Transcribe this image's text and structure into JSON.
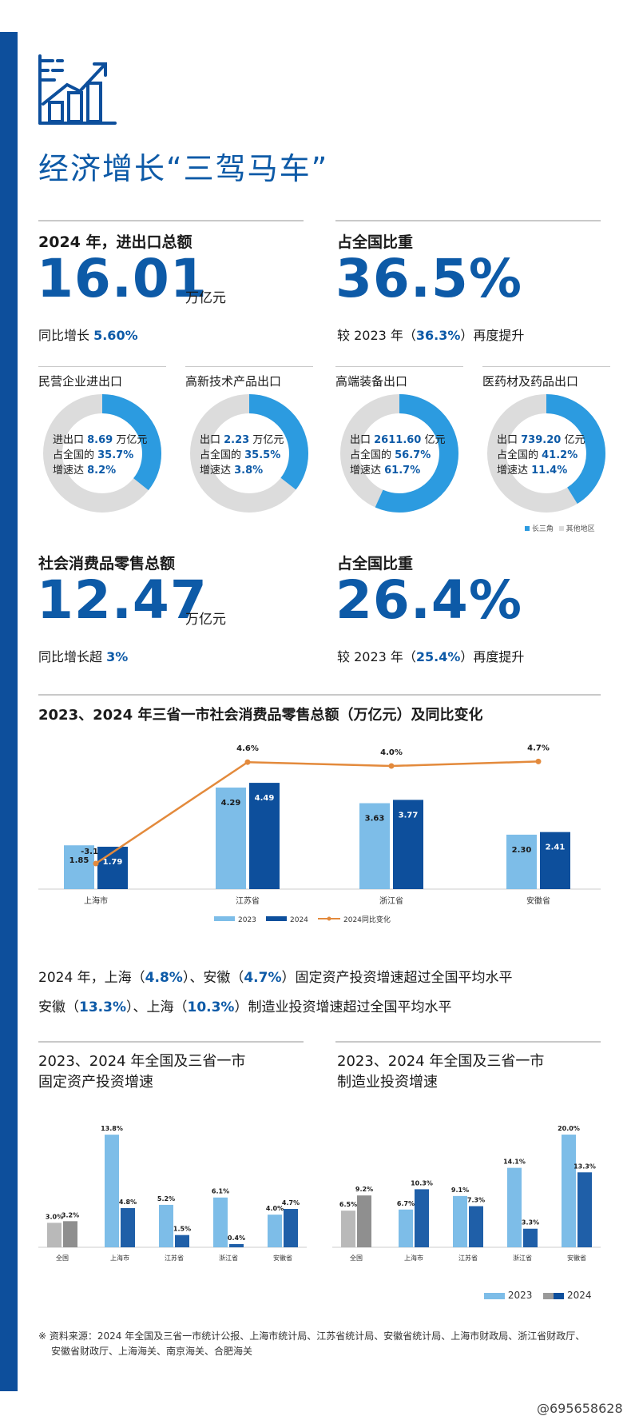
{
  "title": "经济增长“三驾马车”",
  "trade": {
    "label": "2024 年，进出口总额",
    "value": "16.01",
    "unit": "万亿元",
    "growth_prefix": "同比增长 ",
    "growth": "5.60%"
  },
  "trade_share": {
    "label": "占全国比重",
    "value": "36.5%",
    "note_prefix": "较 2023 年（",
    "note_value": "36.3%",
    "note_suffix": "）再度提升"
  },
  "donuts": [
    {
      "title": "民营企业进出口",
      "l1_pre": "进出口 ",
      "l1_val": "8.69",
      "l1_suf": " 万亿元",
      "l2_pre": "占全国的 ",
      "l2_val": "35.7%",
      "l3_pre": "增速达 ",
      "l3_val": "8.2%",
      "share": 0.357
    },
    {
      "title": "高新技术产品出口",
      "l1_pre": "出口 ",
      "l1_val": "2.23",
      "l1_suf": " 万亿元",
      "l2_pre": "占全国的 ",
      "l2_val": "35.5%",
      "l3_pre": "增速达 ",
      "l3_val": "3.8%",
      "share": 0.355
    },
    {
      "title": "高端装备出口",
      "l1_pre": "出口 ",
      "l1_val": "2611.60",
      "l1_suf": " 亿元",
      "l2_pre": "占全国的 ",
      "l2_val": "56.7%",
      "l3_pre": "增速达 ",
      "l3_val": "61.7%",
      "share": 0.567
    },
    {
      "title": "医药材及药品出口",
      "l1_pre": "出口 ",
      "l1_val": "739.20",
      "l1_suf": " 亿元",
      "l2_pre": "占全国的 ",
      "l2_val": "41.2%",
      "l3_pre": "增速达 ",
      "l3_val": "11.4%",
      "share": 0.412
    }
  ],
  "donut_legend": {
    "a": "长三角",
    "b": "其他地区"
  },
  "retail": {
    "label": "社会消费品零售总额",
    "value": "12.47",
    "unit": "万亿元",
    "growth_prefix": "同比增长超 ",
    "growth": "3%"
  },
  "retail_share": {
    "label": "占全国比重",
    "value": "26.4%",
    "note_prefix": "较 2023 年（",
    "note_value": "25.4%",
    "note_suffix": "）再度提升"
  },
  "chart1_title": "2023、2024 年三省一市社会消费品零售总额（万亿元）及同比变化",
  "para1": {
    "p1": "2024 年，上海（",
    "v1": "4.8%",
    "p2": "）、安徽（",
    "v2": "4.7%",
    "p3": "）固定资产投资增速超过全国平均水平"
  },
  "para2": {
    "p1": "安徽（",
    "v1": "13.3%",
    "p2": "）、上海（",
    "v2": "10.3%",
    "p3": "）制造业投资增速超过全国平均水平"
  },
  "chart2_title": [
    "2023、2024 年全国及三省一市",
    "固定资产投资增速"
  ],
  "chart3_title": [
    "2023、2024 年全国及三省一市",
    "制造业投资增速"
  ],
  "legend_bottom": {
    "a": "2023",
    "b": "2024"
  },
  "source": [
    "※ 资料来源：2024 年全国及三省一市统计公报、上海市统计局、江苏省统计局、安徽省统计局、上海市财政局、浙江省财政厅、",
    "安徽省财政厅、上海海关、南京海关、合肥海关"
  ],
  "watermark": "@695658628",
  "colors": {
    "blue_dark": "#0d4f9c",
    "blue_mid": "#1f5fa8",
    "blue_light": "#7dbde8",
    "donut_blue": "#2c9be0",
    "gray": "#dcdcdc",
    "orange": "#e38a3c"
  },
  "chart_data": [
    {
      "type": "bar",
      "categories": [
        "上海市",
        "江苏省",
        "浙江省",
        "安徽省"
      ],
      "series": [
        {
          "name": "2023",
          "values": [
            1.85,
            4.29,
            3.63,
            2.3
          ]
        },
        {
          "name": "2024",
          "values": [
            1.79,
            4.49,
            3.77,
            2.41
          ]
        },
        {
          "name": "2024同比变化",
          "type": "line",
          "values": [
            -3.1,
            4.6,
            4.0,
            4.7
          ],
          "labels": [
            "-3.1",
            "4.6%",
            "4.0%",
            "4.7%"
          ]
        }
      ]
    },
    {
      "type": "bar",
      "categories": [
        "全国",
        "上海市",
        "江苏省",
        "浙江省",
        "安徽省"
      ],
      "series": [
        {
          "name": "2023",
          "values": [
            3.0,
            13.8,
            5.2,
            6.1,
            4.0
          ]
        },
        {
          "name": "2024",
          "values": [
            3.2,
            4.8,
            1.5,
            0.4,
            4.7
          ]
        }
      ]
    },
    {
      "type": "bar",
      "categories": [
        "全国",
        "上海市",
        "江苏省",
        "浙江省",
        "安徽省"
      ],
      "series": [
        {
          "name": "2023",
          "values": [
            6.5,
            6.7,
            9.1,
            14.1,
            20.0
          ]
        },
        {
          "name": "2024",
          "values": [
            9.2,
            10.3,
            7.3,
            3.3,
            13.3
          ]
        }
      ]
    }
  ]
}
